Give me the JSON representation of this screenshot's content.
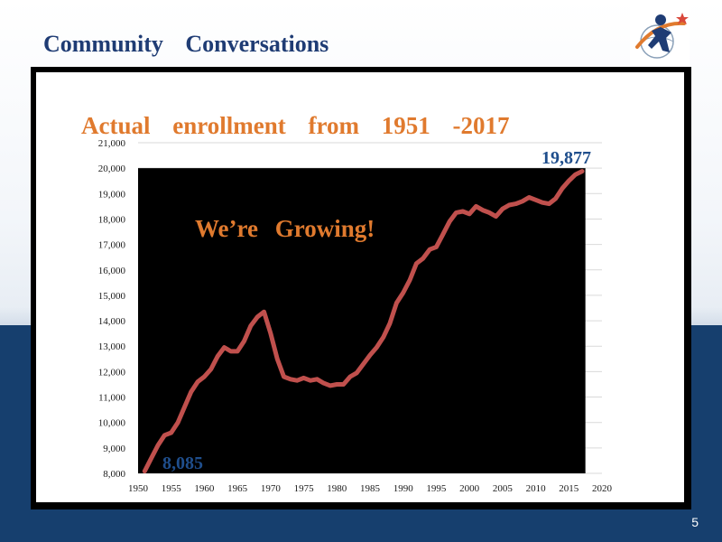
{
  "slide": {
    "title": "Community Conversations",
    "page_number": "5"
  },
  "colors": {
    "title": "#1f3c74",
    "chart_title": "#e07a2e",
    "line": "#c0504d",
    "annotation_blue": "#1f4e8c",
    "plot_background": "#000000",
    "band": "#163f6e"
  },
  "chart_data": {
    "type": "line",
    "title": "Actual enrollment from 1951 -2017",
    "annotation": "We’re Growing!",
    "start_label": "8,085",
    "end_label": "19,877",
    "xlabel": "",
    "ylabel": "",
    "xlim": [
      1950,
      2020
    ],
    "ylim": [
      8000,
      21000
    ],
    "x_ticks": [
      1950,
      1955,
      1960,
      1965,
      1970,
      1975,
      1980,
      1985,
      1990,
      1995,
      2000,
      2005,
      2010,
      2015,
      2020
    ],
    "x_tick_labels": [
      "1950",
      "1955",
      "1960",
      "1965",
      "1970",
      "1975",
      "1980",
      "1985",
      "1990",
      "1995",
      "2000",
      "2005",
      "2010",
      "2015",
      "2020"
    ],
    "y_ticks": [
      8000,
      9000,
      10000,
      11000,
      12000,
      13000,
      14000,
      15000,
      16000,
      17000,
      18000,
      19000,
      20000,
      21000
    ],
    "y_tick_labels": [
      "8,000",
      "9,000",
      "10,000",
      "11,000",
      "12,000",
      "13,000",
      "14,000",
      "15,000",
      "16,000",
      "17,000",
      "18,000",
      "19,000",
      "20,000",
      "21,000"
    ],
    "plot_background_ylim": [
      8000,
      20000
    ],
    "series": [
      {
        "x": [
          1951,
          1952,
          1953,
          1954,
          1955,
          1956,
          1957,
          1958,
          1959,
          1960,
          1961,
          1962,
          1963,
          1964,
          1965,
          1966,
          1967,
          1968,
          1969,
          1970,
          1971,
          1972,
          1973,
          1974,
          1975,
          1976,
          1977,
          1978,
          1979,
          1980,
          1981,
          1982,
          1983,
          1984,
          1985,
          1986,
          1987,
          1988,
          1989,
          1990,
          1991,
          1992,
          1993,
          1994,
          1995,
          1996,
          1997,
          1998,
          1999,
          2000,
          2001,
          2002,
          2003,
          2004,
          2005,
          2006,
          2007,
          2008,
          2009,
          2010,
          2011,
          2012,
          2013,
          2014,
          2015,
          2016,
          2017
        ],
        "values": [
          8085,
          8600,
          9100,
          9500,
          9600,
          10000,
          10600,
          11200,
          11600,
          11800,
          12100,
          12600,
          12950,
          12800,
          12800,
          13200,
          13800,
          14150,
          14350,
          13500,
          12500,
          11800,
          11700,
          11650,
          11750,
          11650,
          11700,
          11550,
          11450,
          11500,
          11500,
          11800,
          11950,
          12300,
          12650,
          12950,
          13350,
          13900,
          14700,
          15100,
          15600,
          16250,
          16450,
          16800,
          16900,
          17400,
          17900,
          18250,
          18300,
          18200,
          18500,
          18350,
          18250,
          18100,
          18400,
          18550,
          18600,
          18700,
          18850,
          18750,
          18650,
          18600,
          18800,
          19200,
          19500,
          19750,
          19877
        ]
      }
    ]
  }
}
